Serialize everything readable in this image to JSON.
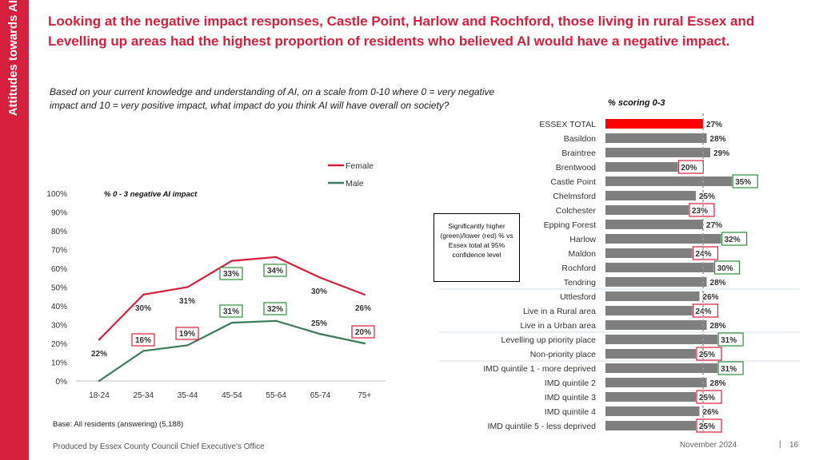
{
  "sidebar": {
    "title": "Attitudes towards AI"
  },
  "headline": "Looking at the negative impact responses, Castle Point, Harlow and Rochford, those living in rural Essex and Levelling up areas had the highest proportion of residents who believed AI would have a negative impact.",
  "question": "Based on your current knowledge and understanding of AI, on a scale from 0-10 where 0 = very negative impact and 10 = very positive impact, what impact do you think AI will have overall on society?",
  "base_note": "Base: All residents (answering) (5,188)",
  "footer": {
    "producer": "Produced by Essex County Council Chief Executive's Office",
    "date": "November 2024",
    "separator": "|",
    "page": "16"
  },
  "significance_note": "Significantly higher (green)/lower (red) % vs Essex total at 95% confidence level",
  "colors": {
    "female": "#d61f3c",
    "male": "#3d7a5a",
    "bar": "#7f7f7f",
    "essex_bar": "#ff0000",
    "sig_higher": "#2e8b3a",
    "sig_lower": "#d61f3c",
    "brand": "#d61f3c"
  },
  "chart_data": [
    {
      "type": "line",
      "title": "% 0 - 3 negative AI impact",
      "categories": [
        "18-24",
        "25-34",
        "35-44",
        "45-54",
        "55-64",
        "65-74",
        "75+"
      ],
      "y_ticks": [
        "0%",
        "10%",
        "20%",
        "30%",
        "40%",
        "50%",
        "60%",
        "70%",
        "80%",
        "90%",
        "100%"
      ],
      "ylim": [
        0,
        100
      ],
      "legend_position": "top-right",
      "series": [
        {
          "name": "Female",
          "color": "#d61f3c",
          "values": [
            22,
            46,
            50,
            64,
            66,
            55,
            46
          ],
          "labels": [
            "22%",
            "30%",
            "31%",
            "33%",
            "34%",
            "30%",
            "26%"
          ],
          "highlight": [
            "none",
            "none",
            "none",
            "higher",
            "higher",
            "none",
            "none"
          ]
        },
        {
          "name": "Male",
          "color": "#3d7a5a",
          "values": [
            0,
            16,
            19,
            31,
            32,
            25,
            20
          ],
          "labels": [
            "",
            "16%",
            "19%",
            "31%",
            "32%",
            "25%",
            "20%"
          ],
          "highlight": [
            "none",
            "lower",
            "lower",
            "higher",
            "higher",
            "none",
            "lower"
          ]
        }
      ]
    },
    {
      "type": "bar",
      "orientation": "horizontal",
      "title": "% scoring 0-3",
      "categories": [
        "ESSEX TOTAL",
        "Basildon",
        "Braintree",
        "Brentwood",
        "Castle Point",
        "Chelmsford",
        "Colchester",
        "Epping Forest",
        "Harlow",
        "Maldon",
        "Rochford",
        "Tendring",
        "Uttlesford",
        "Live in a Rural area",
        "Live in a Urban area",
        "Levelling up priority place",
        "Non-priority place",
        "IMD quintile 1 - more deprived",
        "IMD quintile 2",
        "IMD quintile 3",
        "IMD quintile 4",
        "IMD quintile 5 - less deprived"
      ],
      "values": [
        27,
        28,
        29,
        20,
        35,
        25,
        23,
        27,
        32,
        24,
        30,
        28,
        26,
        24,
        28,
        31,
        25,
        31,
        28,
        25,
        26,
        25
      ],
      "labels": [
        "27%",
        "28%",
        "29%",
        "20%",
        "35%",
        "25%",
        "23%",
        "27%",
        "32%",
        "24%",
        "30%",
        "28%",
        "26%",
        "24%",
        "28%",
        "31%",
        "25%",
        "31%",
        "28%",
        "25%",
        "26%",
        "25%"
      ],
      "significance": [
        "total",
        "none",
        "none",
        "lower",
        "higher",
        "none",
        "lower",
        "none",
        "higher",
        "lower",
        "higher",
        "none",
        "none",
        "lower",
        "none",
        "higher",
        "lower",
        "higher",
        "none",
        "lower",
        "none",
        "lower"
      ],
      "reference_value": 27
    }
  ]
}
